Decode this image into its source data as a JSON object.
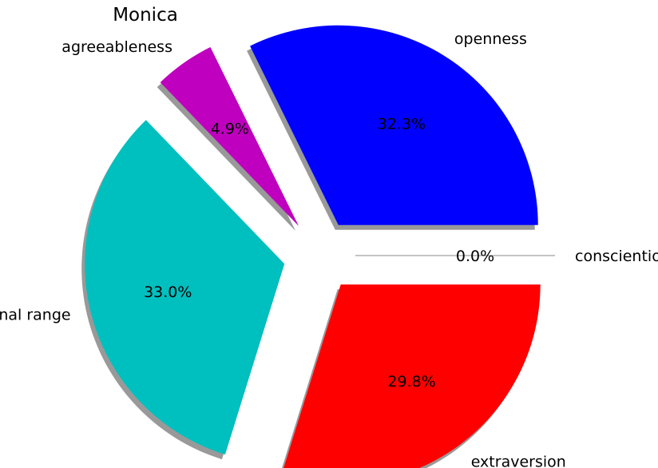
{
  "chart_data": {
    "type": "pie",
    "title": "Monica",
    "slices": [
      {
        "label": "openness",
        "value": 32.3,
        "pct_label": "32.3%",
        "color": "#0000ff",
        "exploded": true
      },
      {
        "label": "agreeableness",
        "value": 4.9,
        "pct_label": "4.9%",
        "color": "#bf00bf",
        "exploded": true
      },
      {
        "label": "emotional range",
        "value": 33.0,
        "pct_label": "33.0%",
        "color": "#00bfbf",
        "exploded": true
      },
      {
        "label": "extraversion",
        "value": 29.8,
        "pct_label": "29.8%",
        "color": "#ff0000",
        "exploded": true
      },
      {
        "label": "conscientiousness",
        "value": 0.0,
        "pct_label": "0.0%",
        "color": "#00bf00",
        "exploded": true
      }
    ],
    "shadow": true,
    "start_angle_deg": 0,
    "direction": "counterclockwise"
  }
}
